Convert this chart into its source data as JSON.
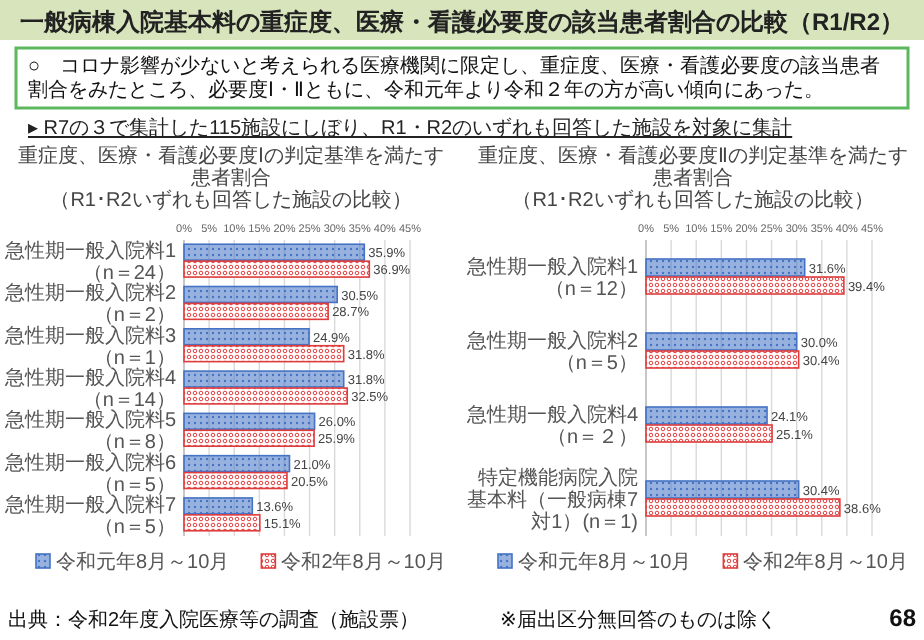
{
  "chart_data": [
    {
      "type": "bar",
      "orientation": "horizontal",
      "title": "重症度、医療・看護必要度Ⅰの判定基準を満たす患者割合",
      "subtitle": "（R1･R2いずれも回答した施設の比較）",
      "categories": [
        "急性期一般入院料1（n＝24）",
        "急性期一般入院料2（n＝2）",
        "急性期一般入院料3（n＝1）",
        "急性期一般入院料4（n＝14）",
        "急性期一般入院料5（n＝8）",
        "急性期一般入院料6（n＝5）",
        "急性期一般入院料7（n＝5）"
      ],
      "series": [
        {
          "name": "令和元年8月～10月",
          "color": "#4472c4",
          "values": [
            35.9,
            30.5,
            24.9,
            31.8,
            26.0,
            21.0,
            13.6
          ],
          "value_labels": [
            "35.9%",
            "30.5%",
            "24.9%",
            "31.8%",
            "26.0%",
            "21.0%",
            "13.6%"
          ]
        },
        {
          "name": "令和2年8月～10月",
          "color": "#e03c3c",
          "values": [
            36.9,
            28.7,
            31.8,
            32.5,
            25.9,
            20.5,
            15.1
          ],
          "value_labels": [
            "36.9%",
            "28.7%",
            "31.8%",
            "32.5%",
            "25.9%",
            "20.5%",
            "15.1%"
          ]
        }
      ],
      "xlim": [
        0,
        45
      ],
      "xticks": [
        {
          "value": 0,
          "label": "0%"
        },
        {
          "value": 5,
          "label": "5%"
        },
        {
          "value": 10,
          "label": "10%"
        },
        {
          "value": 15,
          "label": "15%"
        },
        {
          "value": 20,
          "label": "20%"
        },
        {
          "value": 25,
          "label": "25%"
        },
        {
          "value": 30,
          "label": "30%"
        },
        {
          "value": 35,
          "label": "35%"
        },
        {
          "value": 40,
          "label": "40%"
        },
        {
          "value": 45,
          "label": "45%"
        }
      ],
      "grid": "x",
      "legend": "bottom",
      "annotations": [
        "一般病棟入院基本料の重症度、医療・看護必要度の該当患者割合の比較（R1/R2）",
        "○　コロナ影響が少ないと考えられる医療機関に限定し、重症度、医療・看護必要度の該当患者割合をみたところ、必要度Ⅰ・Ⅱともに、令和元年より令和２年の方が高い傾向にあった。",
        "▸ R7の３で集計した115施設にしぼり、R1・R2のいずれも回答した施設を対象に集計",
        "出典：令和2年度入院医療等の調査（施設票）",
        "※届出区分無回答のものは除く",
        "68"
      ]
    },
    {
      "type": "bar",
      "orientation": "horizontal",
      "title": "重症度、医療・看護必要度Ⅱの判定基準を満たす患者割合",
      "subtitle": "（R1･R2いずれも回答した施設の比較）",
      "categories": [
        "急性期一般入院料1（n＝12）",
        "急性期一般入院料2（n＝5）",
        "急性期一般入院料4（n＝２）",
        "特定機能病院入院基本料（一般病棟7対1）(n＝1)"
      ],
      "series": [
        {
          "name": "令和元年8月～10月",
          "color": "#4472c4",
          "values": [
            31.6,
            30.0,
            24.1,
            30.4
          ],
          "value_labels": [
            "31.6%",
            "30.0%",
            "24.1%",
            "30.4%"
          ]
        },
        {
          "name": "令和2年8月～10月",
          "color": "#e03c3c",
          "values": [
            39.4,
            30.4,
            25.1,
            38.6
          ],
          "value_labels": [
            "39.4%",
            "30.4%",
            "25.1%",
            "38.6%"
          ]
        }
      ],
      "xlim": [
        0,
        45
      ],
      "xticks": [
        {
          "value": 0,
          "label": "0%"
        },
        {
          "value": 5,
          "label": "5%"
        },
        {
          "value": 10,
          "label": "10%"
        },
        {
          "value": 15,
          "label": "15%"
        },
        {
          "value": 20,
          "label": "20%"
        },
        {
          "value": 25,
          "label": "25%"
        },
        {
          "value": 30,
          "label": "30%"
        },
        {
          "value": 35,
          "label": "35%"
        },
        {
          "value": 40,
          "label": "40%"
        },
        {
          "value": 45,
          "label": "45%"
        }
      ],
      "grid": "x",
      "legend": "bottom"
    }
  ]
}
